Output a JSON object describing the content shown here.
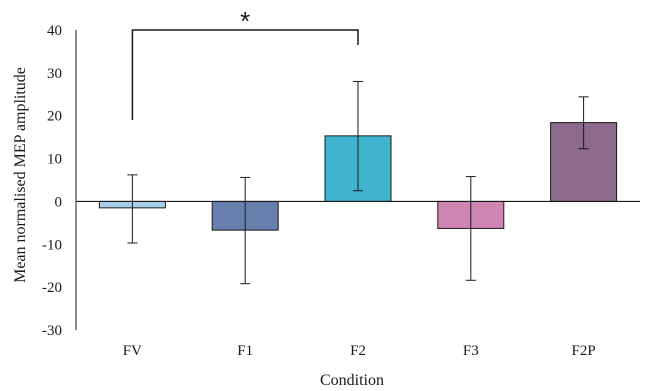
{
  "chart_data": {
    "type": "bar",
    "title": "",
    "xlabel": "Condition",
    "ylabel": "Mean normalised MEP amplitude",
    "categories": [
      "FV",
      "F1",
      "F2",
      "F3",
      "F2P"
    ],
    "values": [
      -1.5,
      -6.7,
      15.3,
      -6.3,
      18.4
    ],
    "error_low": [
      -9.7,
      -19.2,
      2.5,
      -18.4,
      12.3
    ],
    "error_high": [
      6.2,
      5.6,
      28.0,
      5.8,
      24.4
    ],
    "bar_colors": [
      "#a7cde8",
      "#687fae",
      "#3fb4cf",
      "#cf85b2",
      "#8c6a8b"
    ],
    "bar_stroke": "#1a1a1a",
    "ylim": [
      -30,
      40
    ],
    "yticks": [
      "-30",
      "-20",
      "-10",
      "0",
      "10",
      "20",
      "30",
      "40"
    ],
    "ytick_values": [
      -30,
      -20,
      -10,
      0,
      10,
      20,
      30,
      40
    ],
    "grid": false,
    "legend": "none",
    "significance": {
      "from_category": "FV",
      "to_category": "F2",
      "bracket_level": 40,
      "left_drop_to": 19,
      "right_drop_to": 36.5,
      "label": "*"
    }
  }
}
